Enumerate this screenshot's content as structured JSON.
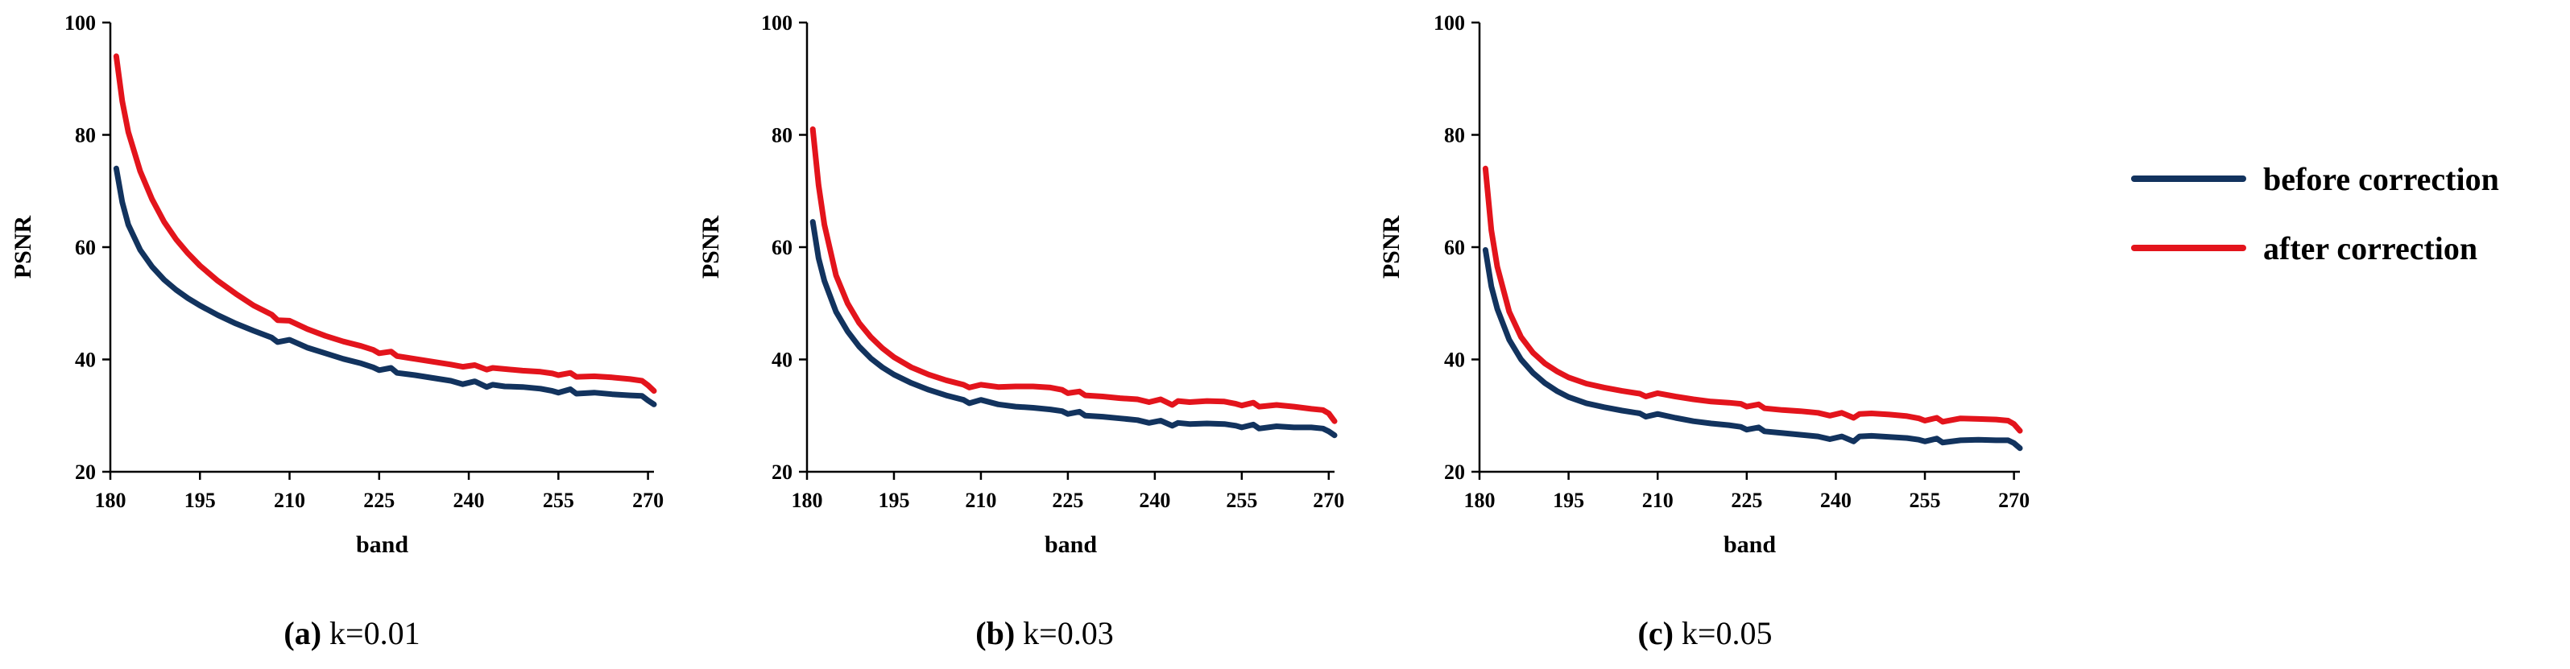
{
  "colors": {
    "before": "#12335e",
    "after": "#e3141c"
  },
  "legend": {
    "before_label": "before correction",
    "after_label": "after correction"
  },
  "chart_data": [
    {
      "type": "line",
      "caption_letter": "(a)",
      "caption_text": " k=0.01",
      "xlabel": "band",
      "ylabel": "PSNR",
      "xlim": [
        180,
        271
      ],
      "ylim": [
        20,
        100
      ],
      "xticks": [
        180,
        195,
        210,
        225,
        240,
        255,
        270
      ],
      "yticks": [
        20,
        40,
        60,
        80,
        100
      ],
      "series": [
        {
          "name": "before correction",
          "x": [
            181,
            182,
            183,
            185,
            187,
            189,
            191,
            193,
            195,
            198,
            201,
            204,
            207,
            208,
            210,
            213,
            216,
            219,
            222,
            224,
            225,
            227,
            228,
            231,
            234,
            237,
            239,
            241,
            243,
            244,
            246,
            249,
            252,
            254,
            255,
            257,
            258,
            261,
            264,
            267,
            269,
            270,
            271
          ],
          "y": [
            74,
            68,
            64,
            59.5,
            56.5,
            54.2,
            52.4,
            50.9,
            49.6,
            47.9,
            46.4,
            45.1,
            43.9,
            43.1,
            43.5,
            42.1,
            41.1,
            40.1,
            39.3,
            38.6,
            38.1,
            38.5,
            37.6,
            37.2,
            36.7,
            36.2,
            35.6,
            36.1,
            35.1,
            35.5,
            35.2,
            35.1,
            34.8,
            34.4,
            34.1,
            34.7,
            33.9,
            34.1,
            33.8,
            33.6,
            33.5,
            32.7,
            32.0
          ]
        },
        {
          "name": "after correction",
          "x": [
            181,
            182,
            183,
            185,
            187,
            189,
            191,
            193,
            195,
            198,
            201,
            204,
            207,
            208,
            210,
            213,
            216,
            219,
            222,
            224,
            225,
            227,
            228,
            231,
            234,
            237,
            239,
            241,
            243,
            244,
            246,
            249,
            252,
            254,
            255,
            257,
            258,
            261,
            264,
            267,
            269,
            270,
            271
          ],
          "y": [
            94,
            86,
            80.5,
            73.5,
            68.5,
            64.5,
            61.4,
            58.9,
            56.7,
            54.0,
            51.7,
            49.6,
            48.0,
            47.0,
            46.9,
            45.4,
            44.2,
            43.2,
            42.4,
            41.7,
            41.1,
            41.4,
            40.6,
            40.1,
            39.6,
            39.1,
            38.7,
            39.0,
            38.2,
            38.5,
            38.3,
            38.0,
            37.8,
            37.5,
            37.2,
            37.6,
            36.9,
            37.0,
            36.8,
            36.5,
            36.2,
            35.4,
            34.4
          ]
        }
      ]
    },
    {
      "type": "line",
      "caption_letter": "(b)",
      "caption_text": " k=0.03",
      "xlabel": "band",
      "ylabel": "PSNR",
      "xlim": [
        180,
        271
      ],
      "ylim": [
        20,
        100
      ],
      "xticks": [
        180,
        195,
        210,
        225,
        240,
        255,
        270
      ],
      "yticks": [
        20,
        40,
        60,
        80,
        100
      ],
      "series": [
        {
          "name": "before correction",
          "x": [
            181,
            182,
            183,
            185,
            187,
            189,
            191,
            193,
            195,
            198,
            201,
            204,
            207,
            208,
            210,
            213,
            216,
            219,
            222,
            224,
            225,
            227,
            228,
            231,
            234,
            237,
            239,
            241,
            243,
            244,
            246,
            249,
            252,
            254,
            255,
            257,
            258,
            261,
            264,
            267,
            269,
            270,
            271
          ],
          "y": [
            64.5,
            58,
            54,
            48.5,
            45,
            42.3,
            40.2,
            38.6,
            37.3,
            35.8,
            34.6,
            33.6,
            32.8,
            32.2,
            32.8,
            32.0,
            31.6,
            31.4,
            31.1,
            30.8,
            30.3,
            30.7,
            30.0,
            29.8,
            29.5,
            29.2,
            28.7,
            29.1,
            28.2,
            28.7,
            28.5,
            28.6,
            28.5,
            28.2,
            27.9,
            28.4,
            27.7,
            28.1,
            27.9,
            27.9,
            27.7,
            27.2,
            26.5
          ]
        },
        {
          "name": "after correction",
          "x": [
            181,
            182,
            183,
            185,
            187,
            189,
            191,
            193,
            195,
            198,
            201,
            204,
            207,
            208,
            210,
            213,
            216,
            219,
            222,
            224,
            225,
            227,
            228,
            231,
            234,
            237,
            239,
            241,
            243,
            244,
            246,
            249,
            252,
            254,
            255,
            257,
            258,
            261,
            264,
            267,
            269,
            270,
            271
          ],
          "y": [
            81,
            71,
            64,
            55,
            50,
            46.5,
            44,
            42,
            40.4,
            38.6,
            37.3,
            36.3,
            35.5,
            35.0,
            35.5,
            35.1,
            35.2,
            35.2,
            35.0,
            34.6,
            34.0,
            34.3,
            33.6,
            33.4,
            33.1,
            32.9,
            32.4,
            32.9,
            31.9,
            32.6,
            32.4,
            32.6,
            32.5,
            32.1,
            31.8,
            32.3,
            31.6,
            31.9,
            31.6,
            31.2,
            31.0,
            30.4,
            29.0
          ]
        }
      ]
    },
    {
      "type": "line",
      "caption_letter": "(c)",
      "caption_text": " k=0.05",
      "xlabel": "band",
      "ylabel": "PSNR",
      "xlim": [
        180,
        271
      ],
      "ylim": [
        20,
        100
      ],
      "xticks": [
        180,
        195,
        210,
        225,
        240,
        255,
        270
      ],
      "yticks": [
        20,
        40,
        60,
        80,
        100
      ],
      "series": [
        {
          "name": "before correction",
          "x": [
            181,
            182,
            183,
            185,
            187,
            189,
            191,
            193,
            195,
            198,
            201,
            204,
            207,
            208,
            210,
            213,
            216,
            219,
            222,
            224,
            225,
            227,
            228,
            231,
            234,
            237,
            239,
            241,
            243,
            244,
            246,
            249,
            252,
            254,
            255,
            257,
            258,
            261,
            264,
            267,
            269,
            270,
            271
          ],
          "y": [
            59.5,
            53,
            49,
            43.5,
            40,
            37.6,
            35.8,
            34.4,
            33.3,
            32.2,
            31.5,
            30.9,
            30.4,
            29.8,
            30.3,
            29.6,
            29.0,
            28.6,
            28.3,
            28.0,
            27.5,
            27.9,
            27.2,
            26.9,
            26.6,
            26.3,
            25.8,
            26.3,
            25.4,
            26.3,
            26.4,
            26.2,
            26.0,
            25.7,
            25.4,
            25.9,
            25.2,
            25.6,
            25.7,
            25.6,
            25.6,
            25.1,
            24.2
          ]
        },
        {
          "name": "after correction",
          "x": [
            181,
            182,
            183,
            185,
            187,
            189,
            191,
            193,
            195,
            198,
            201,
            204,
            207,
            208,
            210,
            213,
            216,
            219,
            222,
            224,
            225,
            227,
            228,
            231,
            234,
            237,
            239,
            241,
            243,
            244,
            246,
            249,
            252,
            254,
            255,
            257,
            258,
            261,
            264,
            267,
            269,
            270,
            271
          ],
          "y": [
            74,
            63,
            56.5,
            48.5,
            44,
            41.2,
            39.3,
            37.9,
            36.8,
            35.7,
            35.0,
            34.4,
            33.9,
            33.4,
            34.0,
            33.4,
            32.9,
            32.5,
            32.3,
            32.1,
            31.6,
            32.0,
            31.3,
            31.0,
            30.8,
            30.5,
            30.0,
            30.5,
            29.6,
            30.3,
            30.4,
            30.2,
            29.9,
            29.5,
            29.1,
            29.6,
            28.9,
            29.5,
            29.4,
            29.3,
            29.1,
            28.5,
            27.3
          ]
        }
      ]
    }
  ]
}
